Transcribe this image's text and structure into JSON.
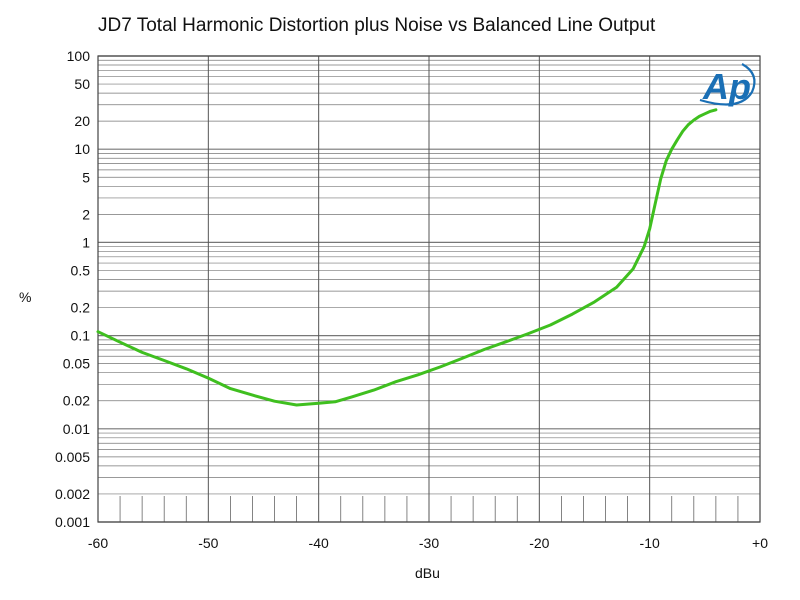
{
  "chart_data": {
    "type": "line",
    "title": "JD7 Total Harmonic Distortion plus Noise vs Balanced Line Output",
    "xlabel": "dBu",
    "ylabel": "%",
    "xlim": [
      -60,
      0
    ],
    "ylim": [
      0.001,
      100
    ],
    "yscale": "log",
    "grid": true,
    "x_ticks": [
      -60,
      -50,
      -40,
      -30,
      -20,
      -10,
      0
    ],
    "x_tick_labels": [
      "-60",
      "-50",
      "-40",
      "-30",
      "-20",
      "-10",
      "+0"
    ],
    "y_ticks": [
      100,
      50,
      20,
      10,
      5,
      2,
      1,
      0.5,
      0.2,
      0.1,
      0.05,
      0.02,
      0.01,
      0.005,
      0.002,
      0.001
    ],
    "y_tick_labels": [
      "100",
      "50",
      "20",
      "10",
      "5",
      "2",
      "1",
      "0.5",
      "0.2",
      "0.1",
      "0.05",
      "0.02",
      "0.01",
      "0.005",
      "0.002",
      "0.001"
    ],
    "series": [
      {
        "color": "#3fbf1f",
        "x": [
          -60,
          -58,
          -56,
          -54,
          -52,
          -50,
          -48,
          -46,
          -44,
          -42,
          -40,
          -38.5,
          -37,
          -35,
          -33,
          -31,
          -29,
          -27,
          -25,
          -23,
          -21,
          -19,
          -17,
          -15,
          -13,
          -11.5,
          -10.5,
          -10,
          -9.5,
          -9,
          -8.5,
          -8,
          -7.5,
          -7,
          -6.5,
          -6,
          -5.5,
          -5,
          -4.5,
          -4
        ],
        "y": [
          0.11,
          0.085,
          0.066,
          0.054,
          0.044,
          0.035,
          0.027,
          0.023,
          0.0198,
          0.018,
          0.0188,
          0.0195,
          0.022,
          0.026,
          0.032,
          0.038,
          0.046,
          0.057,
          0.071,
          0.086,
          0.105,
          0.13,
          0.17,
          0.23,
          0.33,
          0.52,
          0.9,
          1.4,
          2.6,
          4.8,
          7.5,
          10,
          12.6,
          15.6,
          18.3,
          20.5,
          22.5,
          24,
          25.5,
          26.5
        ]
      }
    ]
  },
  "logo": {
    "text": "Ap",
    "color": "#1a6fb5"
  }
}
